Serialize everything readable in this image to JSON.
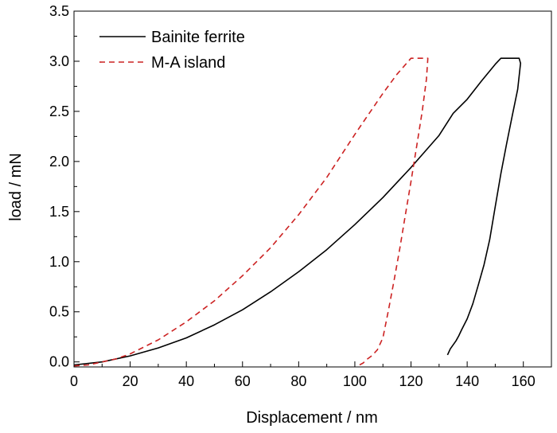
{
  "chart_data": {
    "type": "line",
    "title": "",
    "xlabel": "Displacement / nm",
    "ylabel": "load / mN",
    "xlim": [
      0,
      170
    ],
    "ylim": [
      -0.05,
      3.5
    ],
    "xticks": [
      0,
      20,
      40,
      60,
      80,
      100,
      120,
      140,
      160
    ],
    "yticks": [
      0.0,
      0.5,
      1.0,
      1.5,
      2.0,
      2.5,
      3.0,
      3.5
    ],
    "xtick_labels": [
      "0",
      "20",
      "40",
      "60",
      "80",
      "100",
      "120",
      "140",
      "160"
    ],
    "ytick_labels": [
      "0.0",
      "0.5",
      "1.0",
      "1.5",
      "2.0",
      "2.5",
      "3.0",
      "3.5"
    ],
    "grid": false,
    "legend_position": "top-left",
    "series": [
      {
        "name": "Bainite ferrite",
        "color": "#000000",
        "style": "solid",
        "x": [
          0,
          10,
          20,
          30,
          40,
          50,
          60,
          70,
          80,
          90,
          100,
          110,
          120,
          130,
          135,
          140,
          145,
          150,
          152,
          158.5,
          159,
          158,
          156,
          154,
          152,
          150,
          148,
          146,
          144,
          142,
          140,
          138,
          137,
          136,
          134,
          133
        ],
        "y": [
          -0.03,
          0.0,
          0.06,
          0.14,
          0.24,
          0.37,
          0.52,
          0.7,
          0.9,
          1.12,
          1.37,
          1.64,
          1.94,
          2.26,
          2.48,
          2.62,
          2.8,
          2.97,
          3.03,
          3.03,
          2.98,
          2.72,
          2.45,
          2.17,
          1.88,
          1.55,
          1.22,
          0.97,
          0.77,
          0.58,
          0.43,
          0.32,
          0.26,
          0.21,
          0.13,
          0.07
        ]
      },
      {
        "name": "M-A island",
        "color": "#cc2222",
        "style": "dashed",
        "x": [
          0,
          5,
          10,
          15,
          20,
          30,
          40,
          50,
          60,
          70,
          80,
          90,
          100,
          110,
          115,
          120,
          122,
          126,
          125.5,
          124,
          122,
          120,
          118,
          116,
          114,
          112,
          110,
          108,
          106,
          104,
          103,
          101
        ],
        "y": [
          -0.04,
          -0.03,
          0.0,
          0.03,
          0.08,
          0.22,
          0.4,
          0.61,
          0.86,
          1.14,
          1.47,
          1.84,
          2.27,
          2.68,
          2.87,
          3.03,
          3.03,
          3.03,
          2.82,
          2.5,
          2.15,
          1.8,
          1.47,
          1.13,
          0.82,
          0.52,
          0.24,
          0.12,
          0.06,
          0.02,
          -0.01,
          -0.04
        ]
      }
    ]
  }
}
